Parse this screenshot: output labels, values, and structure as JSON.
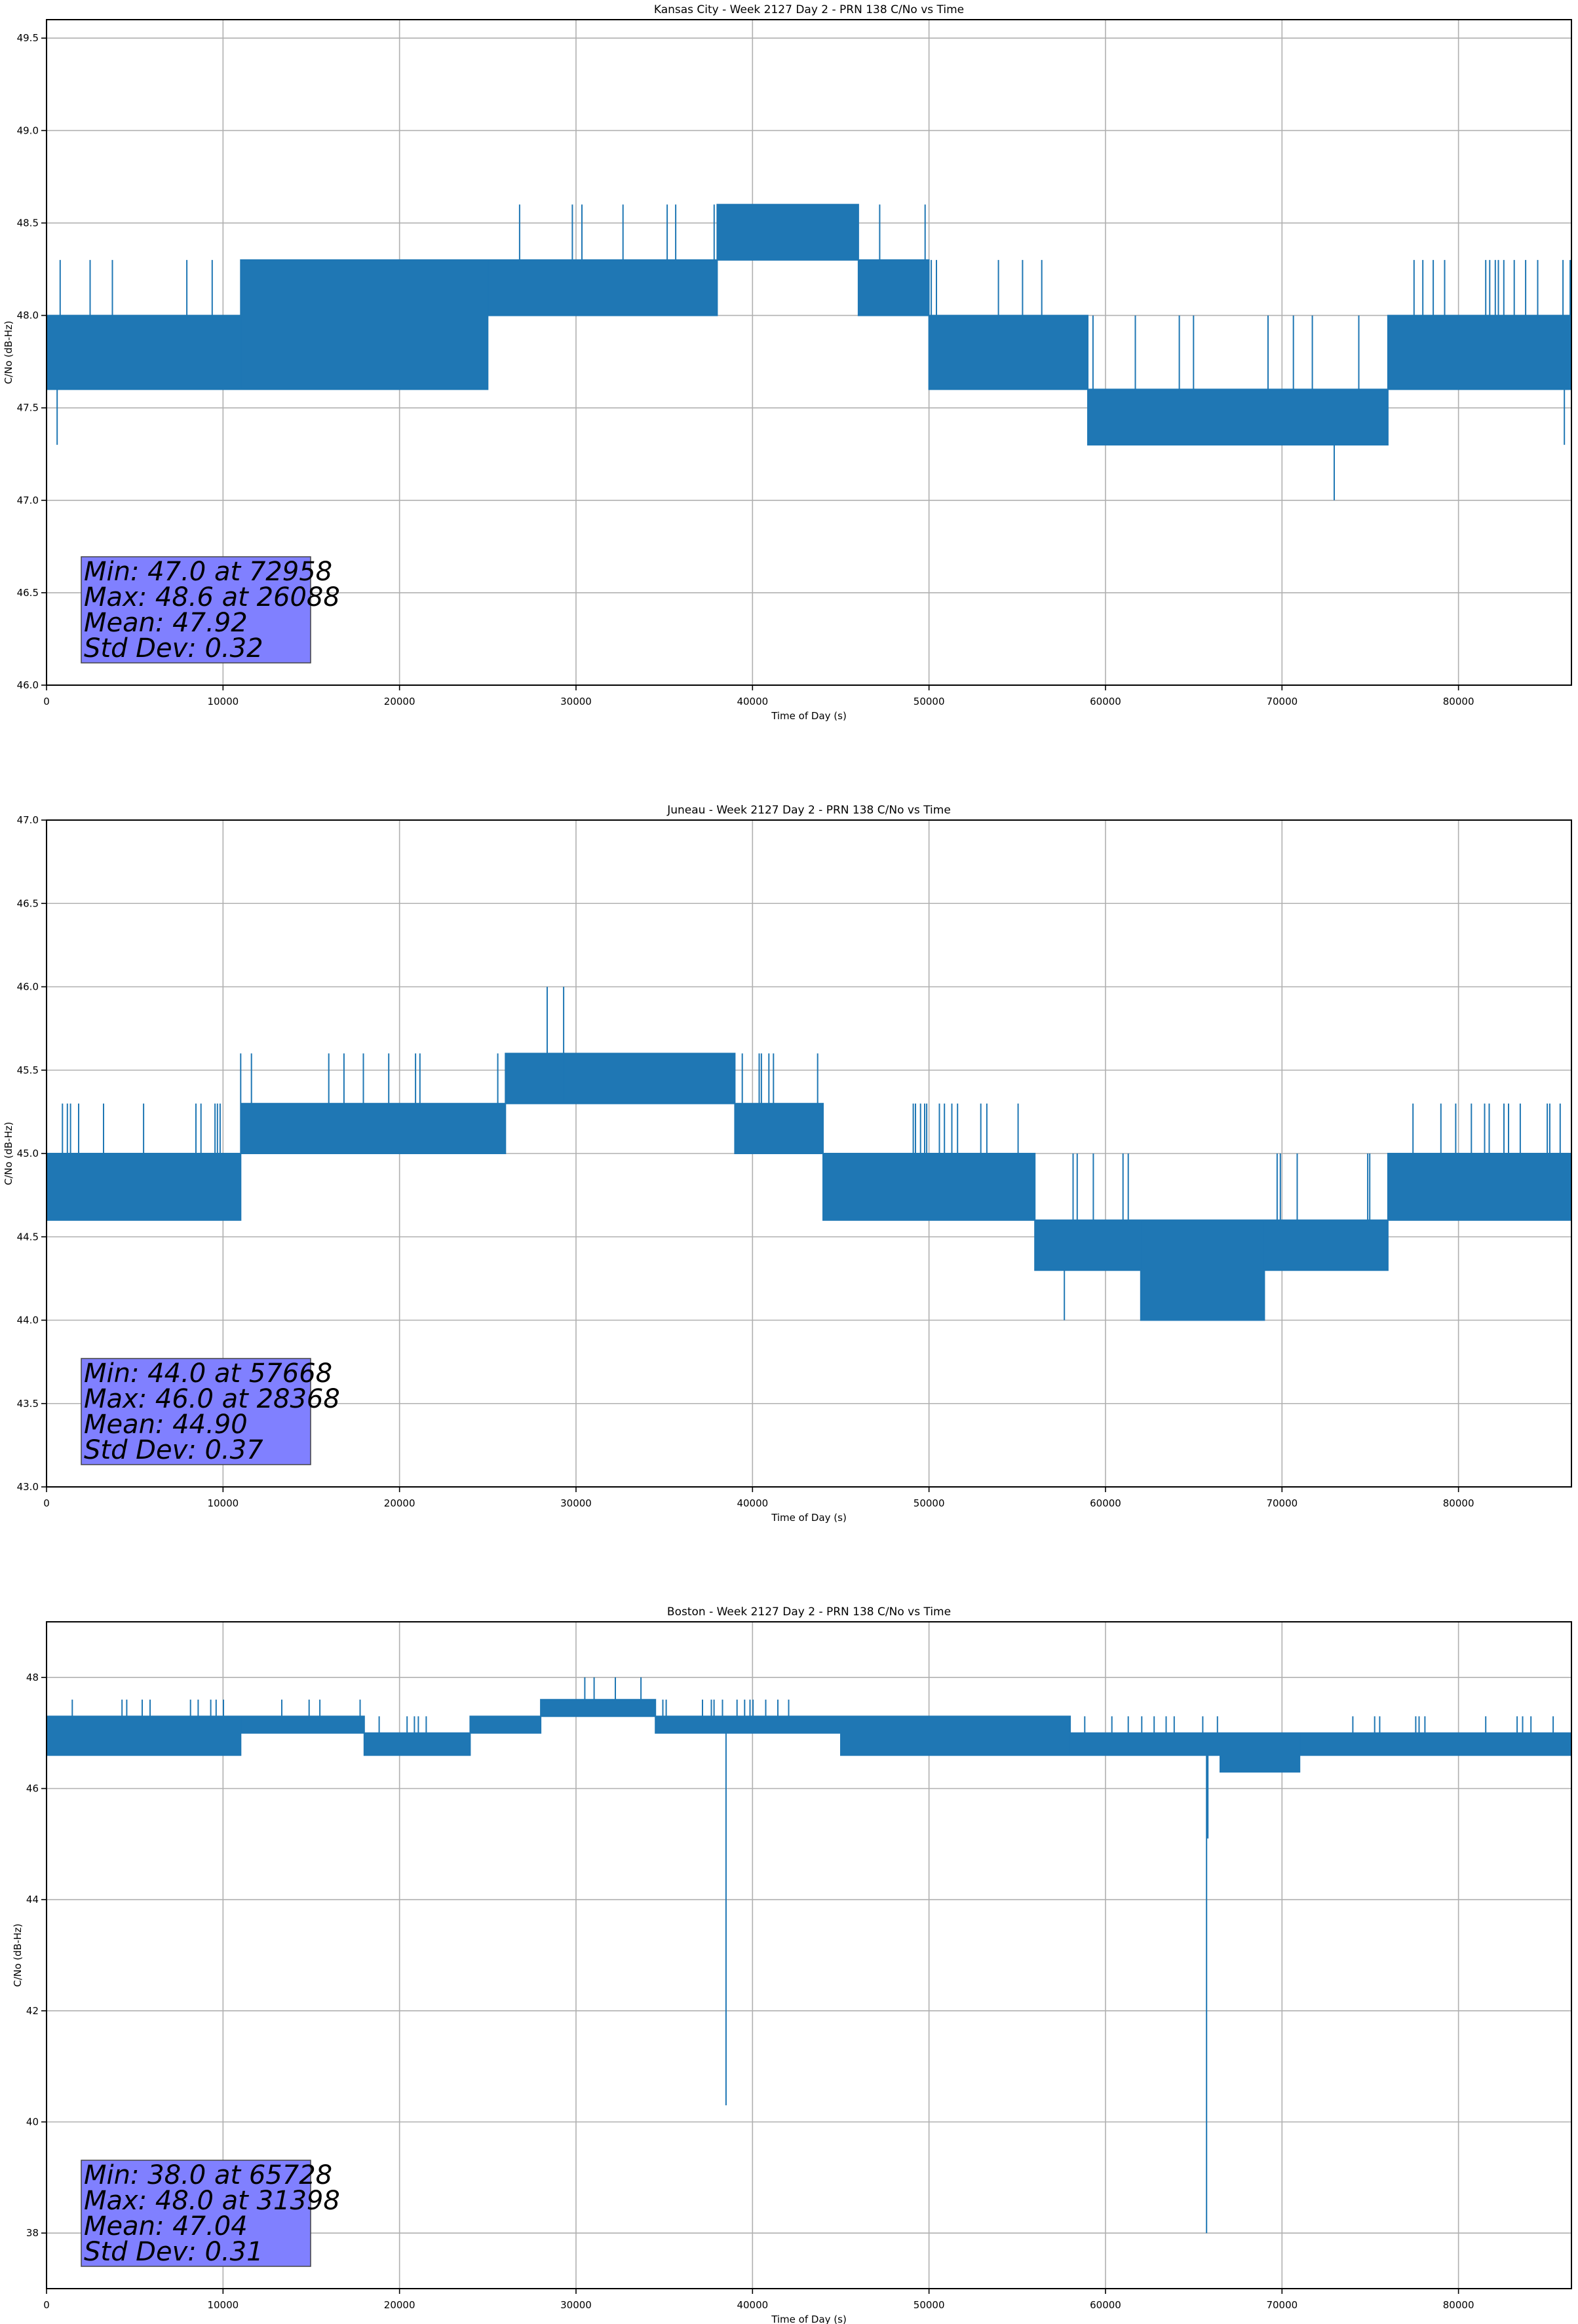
{
  "chart_data": [
    {
      "type": "line",
      "title": "Kansas City - Week 2127 Day 2 - PRN 138 C/No vs Time",
      "xlabel": "Time of Day (s)",
      "ylabel": "C/No (dB-Hz)",
      "xlim": [
        0,
        86400
      ],
      "ylim": [
        46.0,
        49.6
      ],
      "xticks": [
        0,
        10000,
        20000,
        30000,
        40000,
        50000,
        60000,
        70000,
        80000
      ],
      "xtick_labels": [
        "0",
        "10000",
        "20000",
        "30000",
        "40000",
        "50000",
        "60000",
        "70000",
        "80000"
      ],
      "yticks": [
        46.0,
        46.5,
        47.0,
        47.5,
        48.0,
        48.5,
        49.0,
        49.5
      ],
      "ytick_labels": [
        "46.0",
        "46.5",
        "47.0",
        "47.5",
        "48.0",
        "48.5",
        "49.0",
        "49.5"
      ],
      "grid": true,
      "color": "#1f77b4",
      "segments": [
        {
          "x0": 0,
          "x1": 11000,
          "low": 47.6,
          "high": 48.0,
          "spikes_up": 48.3
        },
        {
          "x0": 11000,
          "x1": 25000,
          "low": 47.6,
          "high": 48.3,
          "spikes_up": 48.3
        },
        {
          "x0": 25000,
          "x1": 38000,
          "low": 48.0,
          "high": 48.3,
          "spikes_up": 48.6
        },
        {
          "x0": 38000,
          "x1": 46000,
          "low": 48.3,
          "high": 48.6,
          "spikes_up": 48.6
        },
        {
          "x0": 46000,
          "x1": 50000,
          "low": 48.0,
          "high": 48.3,
          "spikes_up": 48.6
        },
        {
          "x0": 50000,
          "x1": 59000,
          "low": 47.6,
          "high": 48.0,
          "spikes_up": 48.3
        },
        {
          "x0": 59000,
          "x1": 76000,
          "low": 47.3,
          "high": 47.6,
          "spikes_up": 48.0
        },
        {
          "x0": 76000,
          "x1": 86400,
          "low": 47.6,
          "high": 48.0,
          "spikes_up": 48.3
        }
      ],
      "outliers": [
        {
          "x": 600,
          "y": 47.3
        },
        {
          "x": 72958,
          "y": 47.0
        },
        {
          "x": 86000,
          "y": 47.3
        }
      ],
      "stats": {
        "min_value": 47.0,
        "min_time": 72958,
        "max_value": 48.6,
        "max_time": 26088,
        "mean": 47.92,
        "std": 0.32
      },
      "stats_lines": [
        "Min: 47.0 at 72958",
        "Max: 48.6 at 26088",
        "Mean: 47.92",
        "Std Dev: 0.32"
      ]
    },
    {
      "type": "line",
      "title": "Juneau - Week 2127 Day 2 - PRN 138 C/No vs Time",
      "xlabel": "Time of Day (s)",
      "ylabel": "C/No (dB-Hz)",
      "xlim": [
        0,
        86400
      ],
      "ylim": [
        43.0,
        47.0
      ],
      "xticks": [
        0,
        10000,
        20000,
        30000,
        40000,
        50000,
        60000,
        70000,
        80000
      ],
      "xtick_labels": [
        "0",
        "10000",
        "20000",
        "30000",
        "40000",
        "50000",
        "60000",
        "70000",
        "80000"
      ],
      "yticks": [
        43.0,
        43.5,
        44.0,
        44.5,
        45.0,
        45.5,
        46.0,
        46.5,
        47.0
      ],
      "ytick_labels": [
        "43.0",
        "43.5",
        "44.0",
        "44.5",
        "45.0",
        "45.5",
        "46.0",
        "46.5",
        "47.0"
      ],
      "grid": true,
      "color": "#1f77b4",
      "segments": [
        {
          "x0": 0,
          "x1": 11000,
          "low": 44.6,
          "high": 45.0,
          "spikes_up": 45.3
        },
        {
          "x0": 11000,
          "x1": 26000,
          "low": 45.0,
          "high": 45.3,
          "spikes_up": 45.6
        },
        {
          "x0": 26000,
          "x1": 39000,
          "low": 45.3,
          "high": 45.6,
          "spikes_up": 45.6
        },
        {
          "x0": 39000,
          "x1": 44000,
          "low": 45.0,
          "high": 45.3,
          "spikes_up": 45.6
        },
        {
          "x0": 44000,
          "x1": 56000,
          "low": 44.6,
          "high": 45.0,
          "spikes_up": 45.3
        },
        {
          "x0": 56000,
          "x1": 62000,
          "low": 44.3,
          "high": 44.6,
          "spikes_up": 45.0
        },
        {
          "x0": 62000,
          "x1": 69000,
          "low": 44.0,
          "high": 44.6,
          "spikes_up": 44.6
        },
        {
          "x0": 69000,
          "x1": 76000,
          "low": 44.3,
          "high": 44.6,
          "spikes_up": 45.0
        },
        {
          "x0": 76000,
          "x1": 86400,
          "low": 44.6,
          "high": 45.0,
          "spikes_up": 45.3
        }
      ],
      "outliers": [
        {
          "x": 28368,
          "y": 46.0
        },
        {
          "x": 29300,
          "y": 46.0
        },
        {
          "x": 57668,
          "y": 44.0
        }
      ],
      "stats": {
        "min_value": 44.0,
        "min_time": 57668,
        "max_value": 46.0,
        "max_time": 28368,
        "mean": 44.9,
        "std": 0.37
      },
      "stats_lines": [
        "Min: 44.0 at 57668",
        "Max: 46.0 at 28368",
        "Mean: 44.90",
        "Std Dev: 0.37"
      ]
    },
    {
      "type": "line",
      "title": "Boston - Week 2127 Day 2 - PRN 138 C/No vs Time",
      "xlabel": "Time of Day (s)",
      "ylabel": "C/No (dB-Hz)",
      "xlim": [
        0,
        86400
      ],
      "ylim": [
        37.0,
        49.0
      ],
      "xticks": [
        0,
        10000,
        20000,
        30000,
        40000,
        50000,
        60000,
        70000,
        80000
      ],
      "xtick_labels": [
        "0",
        "10000",
        "20000",
        "30000",
        "40000",
        "50000",
        "60000",
        "70000",
        "80000"
      ],
      "yticks": [
        38,
        40,
        42,
        44,
        46,
        48
      ],
      "ytick_labels": [
        "38",
        "40",
        "42",
        "44",
        "46",
        "48"
      ],
      "grid": true,
      "color": "#1f77b4",
      "segments": [
        {
          "x0": 0,
          "x1": 11000,
          "low": 46.6,
          "high": 47.3,
          "spikes_up": 47.6
        },
        {
          "x0": 11000,
          "x1": 18000,
          "low": 47.0,
          "high": 47.3,
          "spikes_up": 47.6
        },
        {
          "x0": 18000,
          "x1": 24000,
          "low": 46.6,
          "high": 47.0,
          "spikes_up": 47.3
        },
        {
          "x0": 24000,
          "x1": 28000,
          "low": 47.0,
          "high": 47.3,
          "spikes_up": 47.3
        },
        {
          "x0": 28000,
          "x1": 34500,
          "low": 47.3,
          "high": 47.6,
          "spikes_up": 48.0
        },
        {
          "x0": 34500,
          "x1": 45000,
          "low": 47.0,
          "high": 47.3,
          "spikes_up": 47.6
        },
        {
          "x0": 45000,
          "x1": 58000,
          "low": 46.6,
          "high": 47.3,
          "spikes_up": 47.3
        },
        {
          "x0": 58000,
          "x1": 66500,
          "low": 46.6,
          "high": 47.0,
          "spikes_up": 47.3
        },
        {
          "x0": 66500,
          "x1": 71000,
          "low": 46.3,
          "high": 47.0,
          "spikes_up": 47.0
        },
        {
          "x0": 71000,
          "x1": 86400,
          "low": 46.6,
          "high": 47.0,
          "spikes_up": 47.3
        }
      ],
      "outliers": [
        {
          "x": 38500,
          "y": 40.3
        },
        {
          "x": 65728,
          "y": 38.0
        },
        {
          "x": 65800,
          "y": 45.1
        }
      ],
      "stats": {
        "min_value": 38.0,
        "min_time": 65728,
        "max_value": 48.0,
        "max_time": 31398,
        "mean": 47.04,
        "std": 0.31
      },
      "stats_lines": [
        "Min: 38.0 at 65728",
        "Max: 48.0 at 31398",
        "Mean: 47.04",
        "Std Dev: 0.31"
      ]
    }
  ],
  "stats_box_color": "#8080ff"
}
